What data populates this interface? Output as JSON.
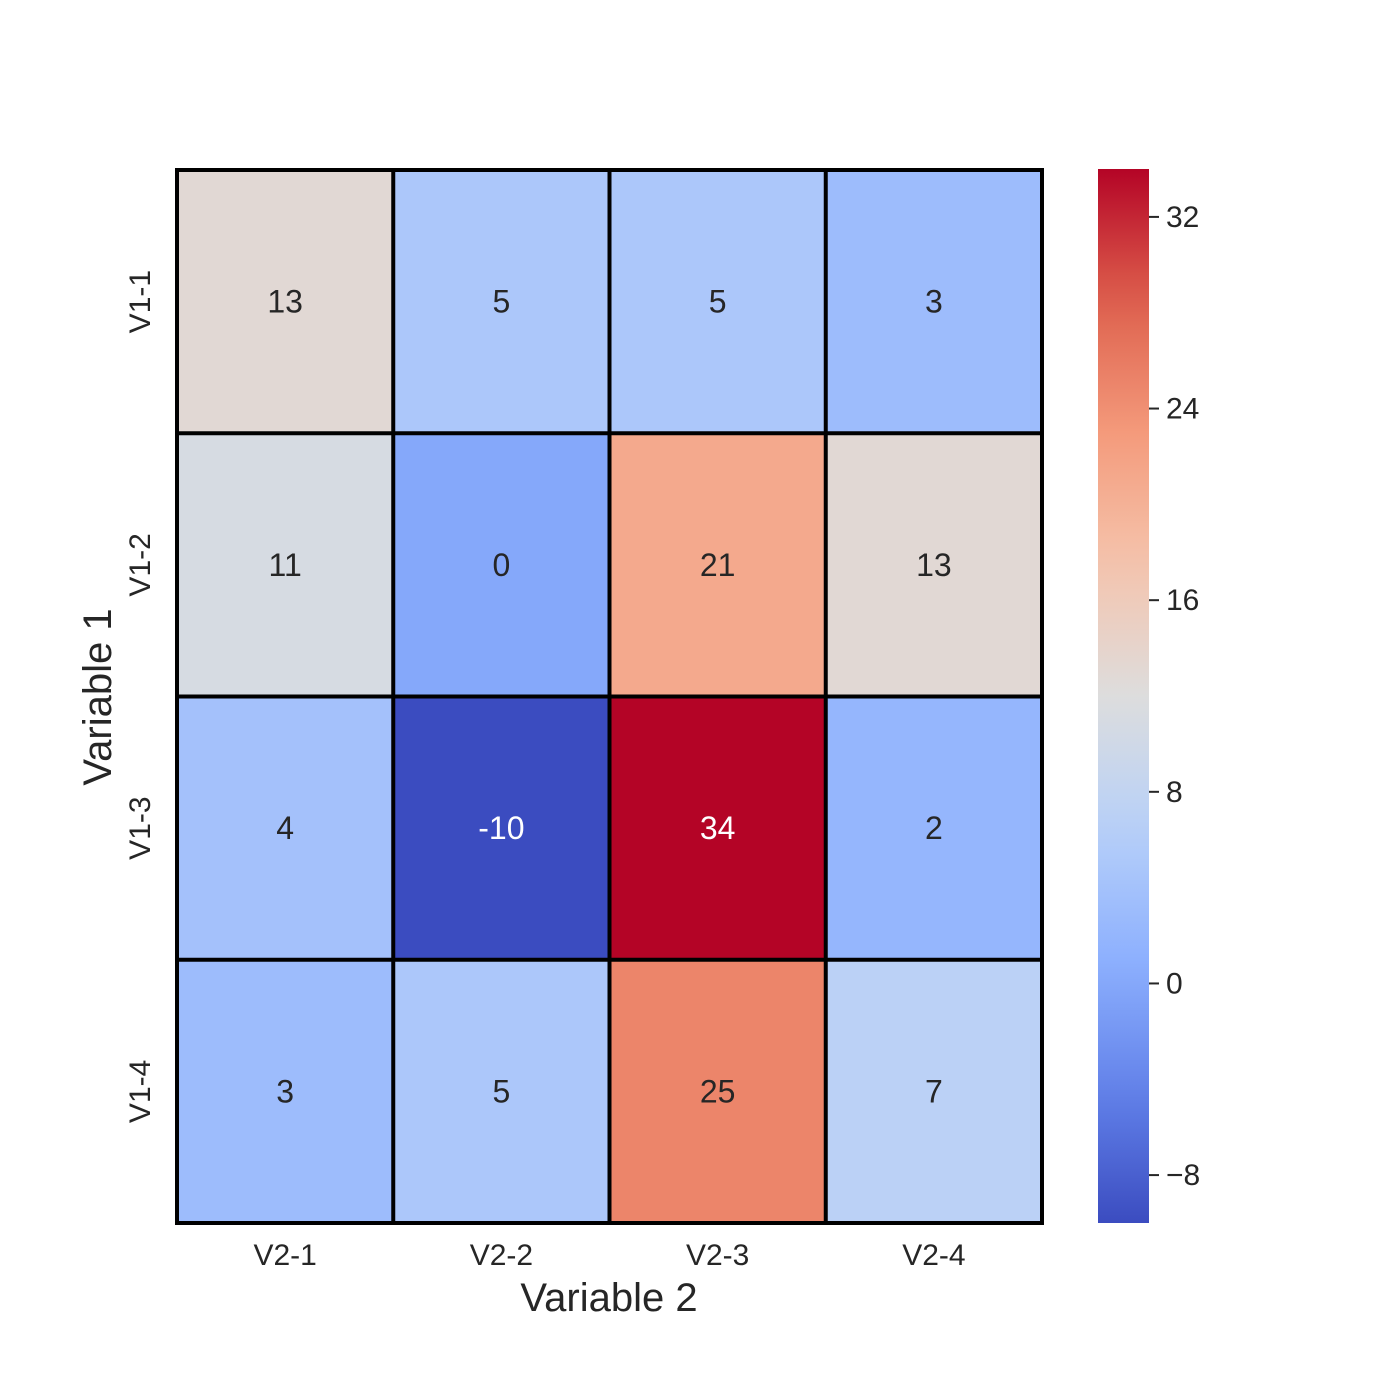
{
  "chart_data": {
    "type": "heatmap",
    "title": "",
    "xlabel": "Variable 2",
    "ylabel": "Variable 1",
    "x_categories": [
      "V2-1",
      "V2-2",
      "V2-3",
      "V2-4"
    ],
    "y_categories": [
      "V1-1",
      "V1-2",
      "V1-3",
      "V1-4"
    ],
    "values": [
      [
        13,
        5,
        5,
        3
      ],
      [
        11,
        0,
        21,
        13
      ],
      [
        4,
        -10,
        34,
        2
      ],
      [
        3,
        5,
        25,
        7
      ]
    ],
    "colormap": "coolwarm",
    "color_range": [
      -10,
      34
    ],
    "colorbar_ticks": [
      "32",
      "24",
      "16",
      "8",
      "0",
      "−8"
    ],
    "colorbar_tick_values": [
      32,
      24,
      16,
      8,
      0,
      -8
    ],
    "grid_color": "#000000",
    "annotation_dark_color": "#262626",
    "annotation_light_color": "#ffffff"
  }
}
